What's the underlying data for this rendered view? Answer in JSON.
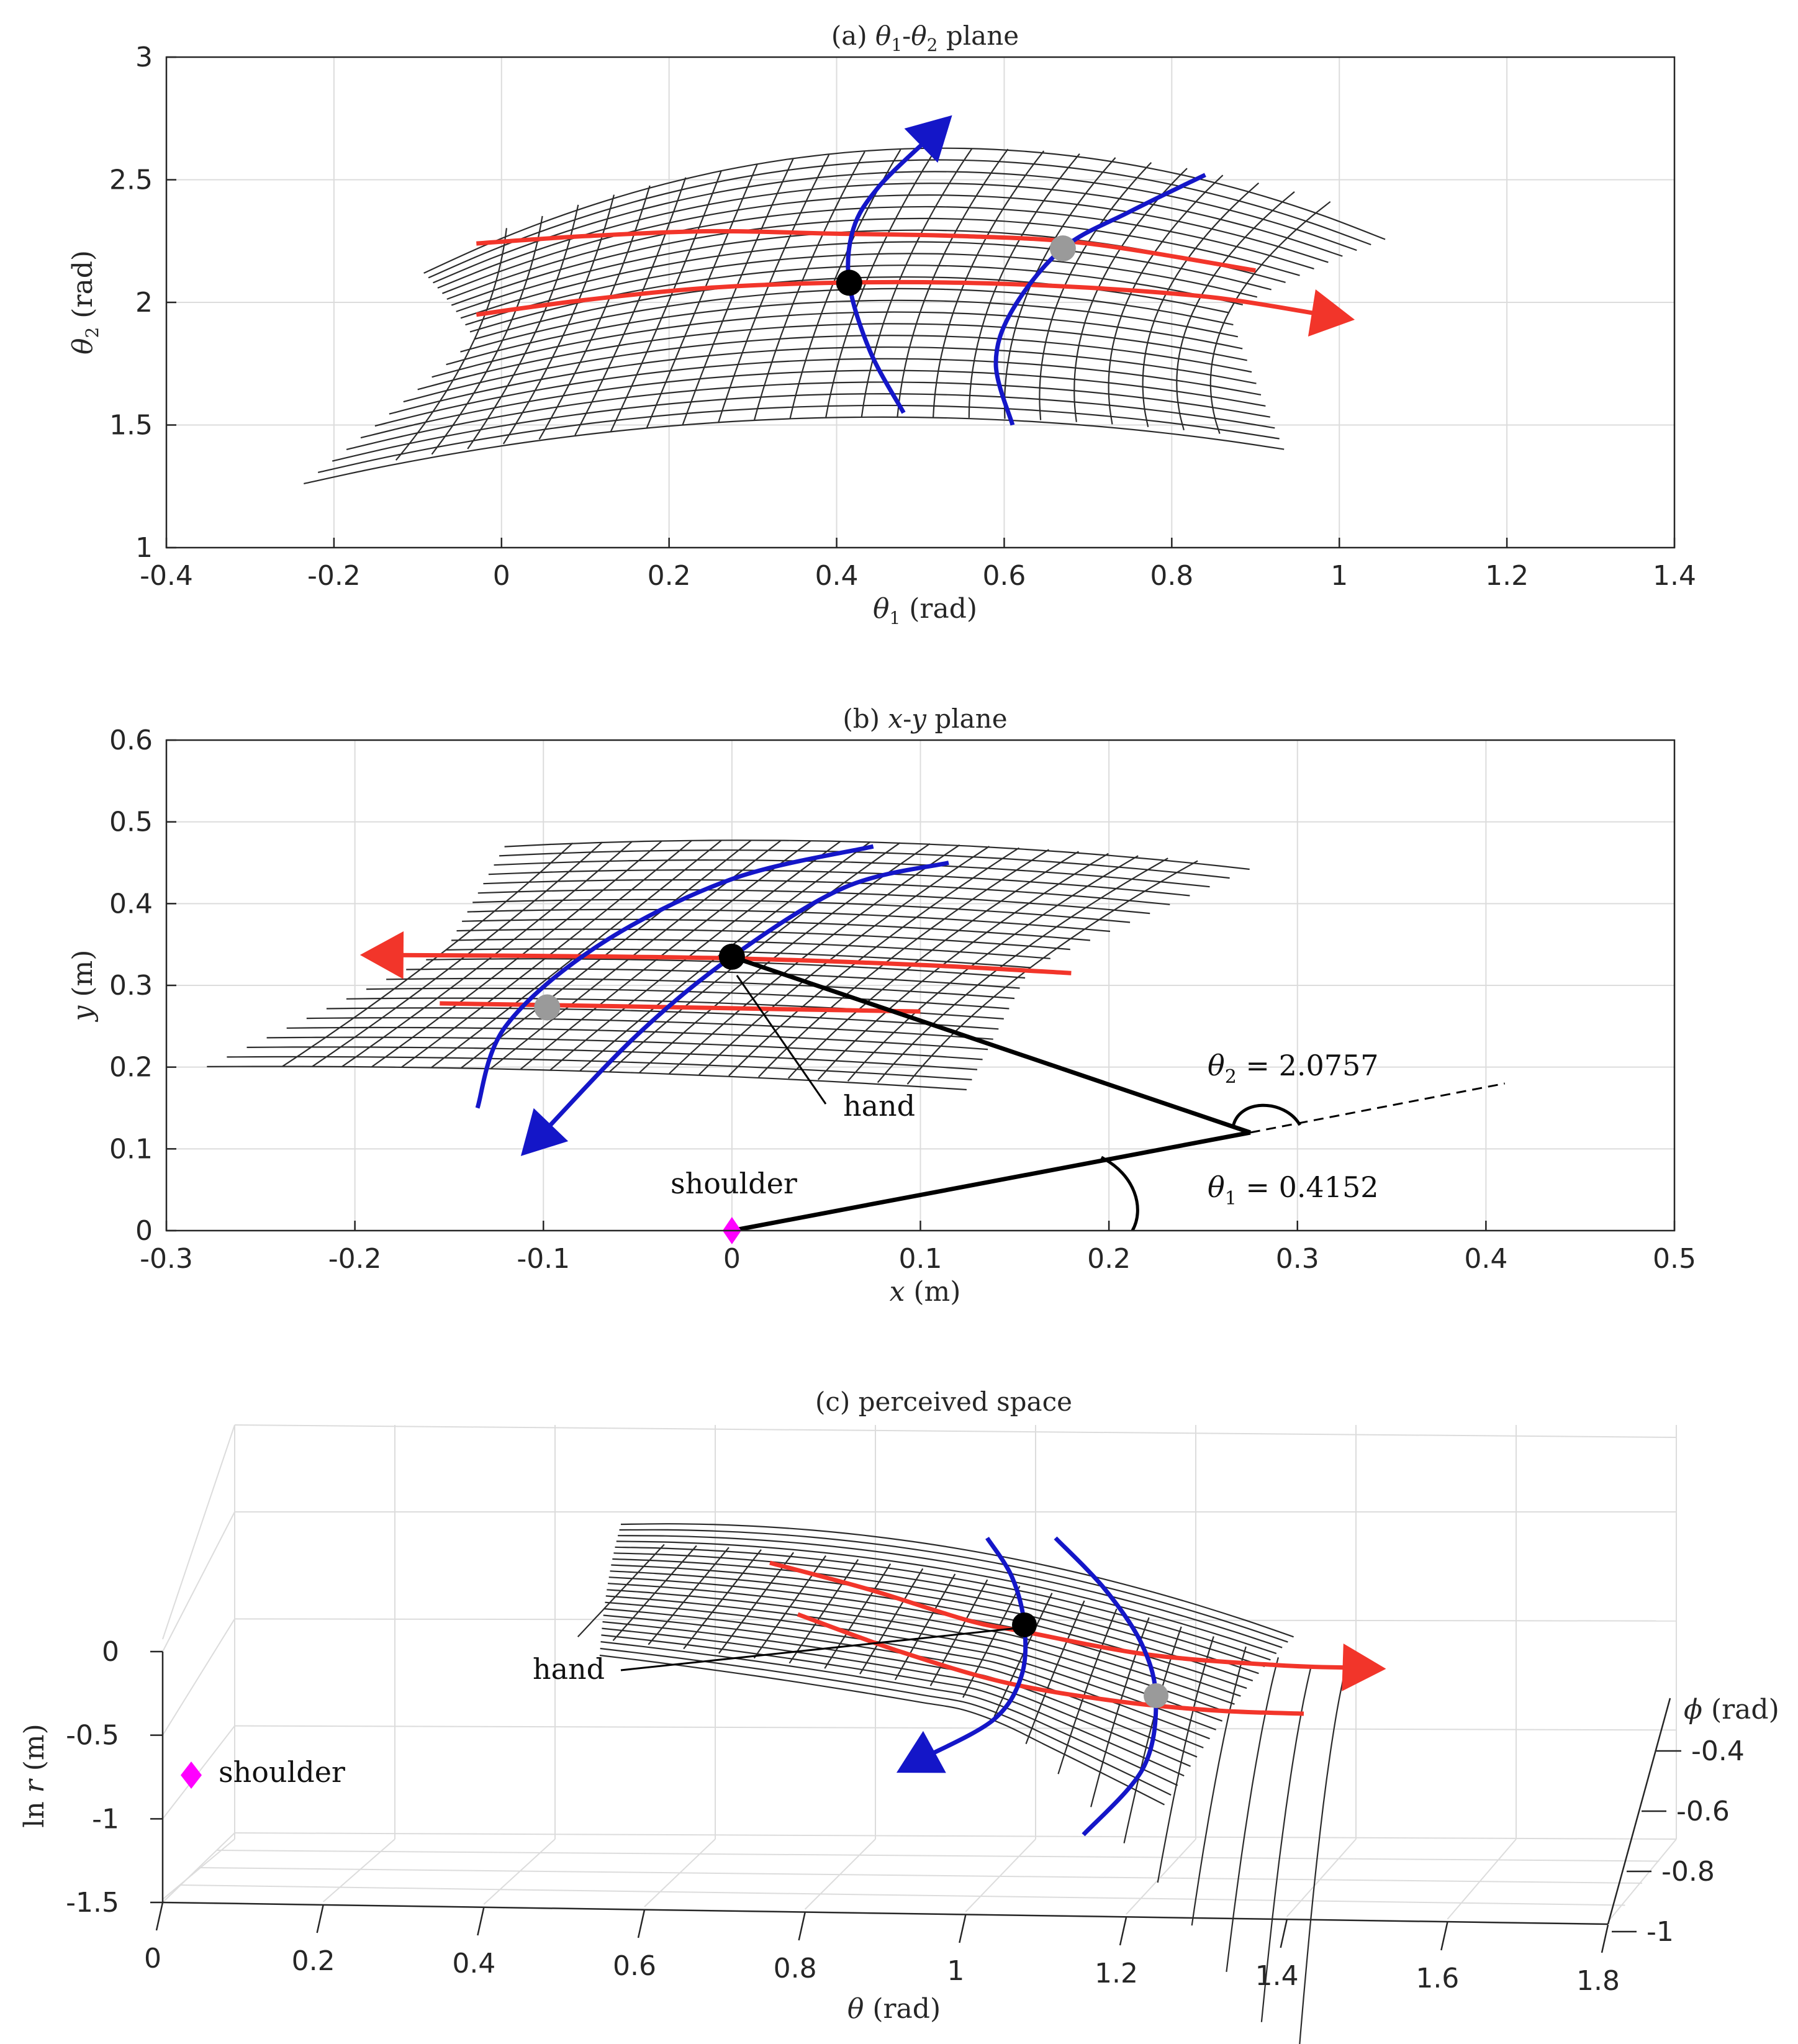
{
  "colors": {
    "grid_line": "#2b2b2b",
    "red": "#f2352a",
    "blue": "#1416c8",
    "gray_marker": "#9a9a9a",
    "black_marker": "#000000",
    "magenta": "#ff00ff"
  },
  "chart_data": [
    {
      "id": "a",
      "type": "line",
      "title": "(a) θ1-θ2 plane",
      "title_parts": {
        "prefix": "(a) ",
        "s1": "θ",
        "sub1": "1",
        "dash": "-",
        "s2": "θ",
        "sub2": "2",
        "suffix": " plane"
      },
      "xlabel": "θ1 (rad)",
      "xlabel_parts": {
        "sym": "θ",
        "sub": "1",
        "unit": " (rad)"
      },
      "ylabel": "θ2 (rad)",
      "ylabel_parts": {
        "sym": "θ",
        "sub": "2",
        "unit": " (rad)"
      },
      "xlim": [
        -0.4,
        1.4
      ],
      "ylim": [
        1,
        3
      ],
      "xticks": [
        -0.4,
        -0.2,
        0,
        0.2,
        0.4,
        0.6,
        0.8,
        1,
        1.2,
        1.4
      ],
      "xtick_labels": [
        "-0.4",
        "-0.2",
        "0",
        "0.2",
        "0.4",
        "0.6",
        "0.8",
        "1",
        "1.2",
        "1.4"
      ],
      "yticks": [
        1,
        1.5,
        2,
        2.5,
        3
      ],
      "ytick_labels": [
        "1",
        "1.5",
        "2",
        "2.5",
        "3"
      ],
      "grid": true,
      "mesh": {
        "u_center": 0.415,
        "u_half": 0.45,
        "u_count": 24,
        "v_center": 2.076,
        "v_half": 0.55,
        "v_count": 24,
        "v_slope": 0.12,
        "v_curv": -0.95,
        "u_lean": 0.12,
        "u_curv": 0.55
      },
      "red_curves": [
        {
          "name": "red-lower",
          "x": [
            -0.03,
            0.1,
            0.25,
            0.4,
            0.55,
            0.7,
            0.85,
            0.98
          ],
          "y": [
            1.95,
            2.01,
            2.06,
            2.08,
            2.08,
            2.06,
            2.02,
            1.95
          ],
          "arrow": "end"
        },
        {
          "name": "red-upper",
          "x": [
            -0.03,
            0.1,
            0.25,
            0.4,
            0.55,
            0.7,
            0.9
          ],
          "y": [
            2.24,
            2.27,
            2.29,
            2.28,
            2.27,
            2.24,
            2.13
          ],
          "arrow": "none"
        }
      ],
      "blue_curves": [
        {
          "name": "blue-left",
          "x": [
            0.48,
            0.44,
            0.415,
            0.42,
            0.45,
            0.51
          ],
          "y": [
            1.55,
            1.8,
            2.08,
            2.3,
            2.47,
            2.67
          ],
          "arrow": "end"
        },
        {
          "name": "blue-right",
          "x": [
            0.61,
            0.59,
            0.61,
            0.67,
            0.75,
            0.84
          ],
          "y": [
            1.5,
            1.75,
            1.97,
            2.22,
            2.37,
            2.52
          ],
          "arrow": "none"
        }
      ],
      "points": [
        {
          "name": "black-point",
          "x": 0.415,
          "y": 2.08,
          "color": "black"
        },
        {
          "name": "gray-point",
          "x": 0.67,
          "y": 2.22,
          "color": "gray"
        }
      ]
    },
    {
      "id": "b",
      "type": "line",
      "title": "(b) x-y plane",
      "title_parts": {
        "prefix": "(b) ",
        "s1": "x",
        "dash": "-",
        "s2": "y",
        "suffix": " plane"
      },
      "xlabel": "x (m)",
      "xlabel_parts": {
        "sym": "x",
        "unit": " (m)"
      },
      "ylabel": "y (m)",
      "ylabel_parts": {
        "sym": "y",
        "unit": " (m)"
      },
      "xlim": [
        -0.3,
        0.5
      ],
      "ylim": [
        0,
        0.6
      ],
      "xticks": [
        -0.3,
        -0.2,
        -0.1,
        0,
        0.1,
        0.2,
        0.3,
        0.4,
        0.5
      ],
      "xtick_labels": [
        "-0.3",
        "-0.2",
        "-0.1",
        "0",
        "0.1",
        "0.2",
        "0.3",
        "0.4",
        "0.5"
      ],
      "yticks": [
        0,
        0.1,
        0.2,
        0.3,
        0.4,
        0.5,
        0.6
      ],
      "ytick_labels": [
        "0",
        "0.1",
        "0.2",
        "0.3",
        "0.4",
        "0.5",
        "0.6"
      ],
      "grid": true,
      "mesh": {
        "u_center": 0.0,
        "u_half": 0.155,
        "u_count": 22,
        "v_center": 0.335,
        "v_half": 0.14,
        "v_count": 24,
        "v_slope": -0.07,
        "v_curv": -0.35,
        "u_lean": 0.55,
        "u_curv": 2.2
      },
      "red_curves": [
        {
          "name": "red-upper",
          "x": [
            0.18,
            0.1,
            0.0,
            -0.1,
            -0.18
          ],
          "y": [
            0.315,
            0.325,
            0.333,
            0.336,
            0.337
          ],
          "arrow": "end"
        },
        {
          "name": "red-lower",
          "x": [
            -0.155,
            -0.1,
            0.0,
            0.1
          ],
          "y": [
            0.278,
            0.276,
            0.272,
            0.268
          ],
          "arrow": "none"
        }
      ],
      "blue_curves": [
        {
          "name": "blue-right",
          "x": [
            0.115,
            0.06,
            0.0,
            -0.05,
            -0.1
          ],
          "y": [
            0.45,
            0.42,
            0.335,
            0.24,
            0.12
          ],
          "arrow": "end"
        },
        {
          "name": "blue-left",
          "x": [
            0.075,
            0.0,
            -0.07,
            -0.12,
            -0.135
          ],
          "y": [
            0.47,
            0.43,
            0.35,
            0.25,
            0.15
          ],
          "arrow": "none"
        }
      ],
      "points": [
        {
          "name": "black-point",
          "x": 0.0,
          "y": 0.335,
          "color": "black"
        },
        {
          "name": "gray-point",
          "x": -0.098,
          "y": 0.273,
          "color": "gray"
        }
      ],
      "arm": {
        "shoulder": [
          0,
          0
        ],
        "elbow": [
          0.275,
          0.12
        ],
        "hand": [
          0.0,
          0.335
        ],
        "dashed_end": [
          0.41,
          0.18
        ]
      },
      "annotations": {
        "theta2": {
          "sym": "θ",
          "sub": "2",
          "text": " = 2.0757"
        },
        "theta1": {
          "sym": "θ",
          "sub": "1",
          "text": " = 0.4152"
        },
        "hand": "hand",
        "shoulder": "shoulder"
      }
    },
    {
      "id": "c",
      "type": "line",
      "title": "(c) perceived space",
      "xlabel": "θ (rad)",
      "xlabel_parts": {
        "sym": "θ",
        "unit": " (rad)"
      },
      "ylabel": "ln r (m)",
      "ylabel_parts": {
        "pre": "ln ",
        "sym": "r",
        "unit": " (m)"
      },
      "zlabel": "ϕ (rad)",
      "zlabel_parts": {
        "sym": "ϕ",
        "unit": " (rad)"
      },
      "xlim": [
        0,
        1.8
      ],
      "ylim": [
        -1.5,
        0
      ],
      "zlim": [
        -1,
        -0.4
      ],
      "xtick_labels": [
        "0",
        "0.2",
        "0.4",
        "0.6",
        "0.8",
        "1",
        "1.2",
        "1.4",
        "1.6",
        "1.8"
      ],
      "ytick_labels": [
        "0",
        "-0.5",
        "-1",
        "-1.5"
      ],
      "ztick_labels": [
        "-0.4",
        "-0.6",
        "-0.8",
        "-1"
      ],
      "grid": true,
      "annotations": {
        "hand": "hand",
        "shoulder": "shoulder"
      }
    }
  ]
}
